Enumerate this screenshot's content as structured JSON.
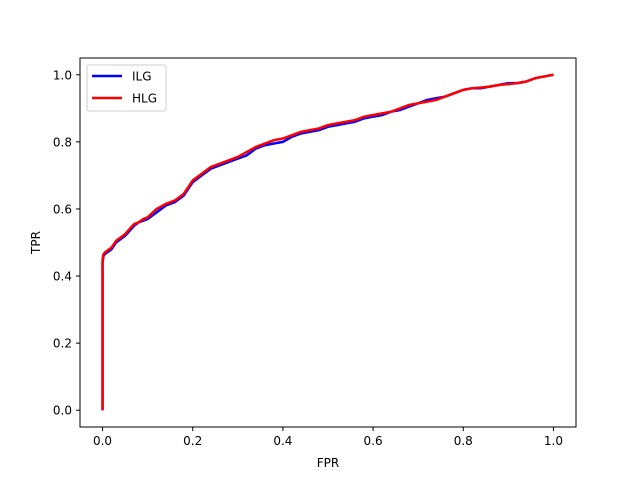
{
  "chart_data": {
    "type": "line",
    "title": "",
    "xlabel": "FPR",
    "ylabel": "TPR",
    "xlim": [
      -0.05,
      1.05
    ],
    "ylim": [
      -0.05,
      1.05
    ],
    "xticks": [
      0.0,
      0.2,
      0.4,
      0.6,
      0.8,
      1.0
    ],
    "xtick_labels": [
      "0.0",
      "0.2",
      "0.4",
      "0.6",
      "0.8",
      "1.0"
    ],
    "yticks": [
      0.0,
      0.2,
      0.4,
      0.6,
      0.8,
      1.0
    ],
    "ytick_labels": [
      "0.0",
      "0.2",
      "0.4",
      "0.6",
      "0.8",
      "1.0"
    ],
    "grid": false,
    "legend": {
      "position": "upper-left",
      "entries": [
        "ILG",
        "HLG"
      ]
    },
    "series": [
      {
        "name": "ILG",
        "color": "#0000ff",
        "x": [
          0.0,
          0.0,
          0.002,
          0.005,
          0.01,
          0.02,
          0.03,
          0.04,
          0.05,
          0.06,
          0.07,
          0.08,
          0.09,
          0.1,
          0.12,
          0.14,
          0.16,
          0.18,
          0.19,
          0.2,
          0.22,
          0.24,
          0.26,
          0.28,
          0.3,
          0.32,
          0.34,
          0.36,
          0.38,
          0.4,
          0.42,
          0.44,
          0.46,
          0.48,
          0.5,
          0.52,
          0.54,
          0.56,
          0.58,
          0.6,
          0.62,
          0.64,
          0.66,
          0.68,
          0.7,
          0.72,
          0.74,
          0.76,
          0.78,
          0.8,
          0.82,
          0.84,
          0.86,
          0.88,
          0.9,
          0.92,
          0.94,
          0.96,
          0.98,
          1.0
        ],
        "y": [
          0.0,
          0.44,
          0.46,
          0.465,
          0.47,
          0.48,
          0.5,
          0.51,
          0.52,
          0.535,
          0.55,
          0.56,
          0.565,
          0.57,
          0.59,
          0.61,
          0.62,
          0.64,
          0.66,
          0.68,
          0.7,
          0.72,
          0.73,
          0.74,
          0.75,
          0.76,
          0.78,
          0.79,
          0.795,
          0.8,
          0.815,
          0.825,
          0.83,
          0.835,
          0.845,
          0.85,
          0.855,
          0.86,
          0.87,
          0.875,
          0.88,
          0.89,
          0.895,
          0.905,
          0.915,
          0.925,
          0.93,
          0.935,
          0.945,
          0.955,
          0.96,
          0.96,
          0.965,
          0.97,
          0.975,
          0.975,
          0.98,
          0.99,
          0.995,
          1.0
        ]
      },
      {
        "name": "HLG",
        "color": "#ff0000",
        "x": [
          0.0,
          0.0,
          0.002,
          0.005,
          0.01,
          0.02,
          0.03,
          0.04,
          0.05,
          0.06,
          0.07,
          0.08,
          0.09,
          0.1,
          0.12,
          0.14,
          0.16,
          0.18,
          0.19,
          0.2,
          0.22,
          0.24,
          0.26,
          0.28,
          0.3,
          0.32,
          0.34,
          0.36,
          0.38,
          0.4,
          0.42,
          0.44,
          0.46,
          0.48,
          0.5,
          0.52,
          0.54,
          0.56,
          0.58,
          0.6,
          0.62,
          0.64,
          0.66,
          0.68,
          0.7,
          0.72,
          0.74,
          0.76,
          0.78,
          0.8,
          0.82,
          0.84,
          0.86,
          0.88,
          0.9,
          0.92,
          0.94,
          0.96,
          0.98,
          1.0
        ],
        "y": [
          0.0,
          0.45,
          0.465,
          0.47,
          0.475,
          0.485,
          0.505,
          0.515,
          0.525,
          0.54,
          0.555,
          0.56,
          0.57,
          0.575,
          0.6,
          0.615,
          0.625,
          0.645,
          0.665,
          0.685,
          0.705,
          0.725,
          0.735,
          0.745,
          0.755,
          0.77,
          0.785,
          0.795,
          0.805,
          0.81,
          0.82,
          0.83,
          0.835,
          0.84,
          0.85,
          0.855,
          0.86,
          0.865,
          0.875,
          0.88,
          0.885,
          0.89,
          0.9,
          0.91,
          0.915,
          0.92,
          0.925,
          0.935,
          0.945,
          0.955,
          0.96,
          0.962,
          0.965,
          0.97,
          0.972,
          0.975,
          0.98,
          0.99,
          0.995,
          1.0
        ]
      }
    ]
  }
}
